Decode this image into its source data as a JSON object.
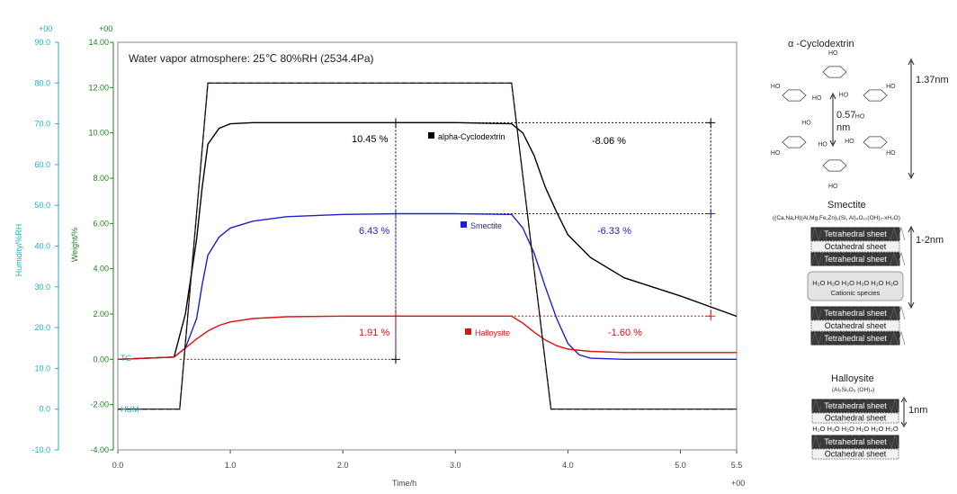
{
  "chart_data": {
    "type": "line",
    "title": "Water vapor atmosphere: 25℃  80%RH (2534.4Pa)",
    "xlabel": "Time/h",
    "ylabel_left": "Weight/%",
    "ylabel_humidity": "Humidity/%RH",
    "x_exponent": "+00",
    "weight_exponent": "+00",
    "humidity_exponent": "+00",
    "xlim": [
      0.0,
      5.5
    ],
    "weight_ylim": [
      -4.0,
      14.0
    ],
    "humidity_ylim": [
      -10.0,
      90.0
    ],
    "x_ticks": [
      "0.0",
      "1.0",
      "2.0",
      "3.0",
      "4.0",
      "5.0",
      "5.5"
    ],
    "weight_ticks": [
      "-4.00",
      "-2.00",
      "0.00",
      "2.00",
      "4.00",
      "6.00",
      "8.00",
      "10.00",
      "12.00",
      "14.00"
    ],
    "humidity_ticks": [
      "-10.0",
      "0.0",
      "10.0",
      "20.0",
      "30.0",
      "40.0",
      "50.0",
      "60.0",
      "70.0",
      "80.0",
      "90.0"
    ],
    "curve_labels": {
      "tg": "TG",
      "hum": "HUM"
    },
    "series": [
      {
        "name": "alpha-Cyclodextrin",
        "color": "#000000",
        "gain": "10.45 %",
        "loss": "-8.06 %",
        "x": [
          0.0,
          0.5,
          0.6,
          0.7,
          0.75,
          0.8,
          0.9,
          1.0,
          1.2,
          1.5,
          2.0,
          2.5,
          3.0,
          3.5,
          3.6,
          3.7,
          3.8,
          3.9,
          4.0,
          4.2,
          4.5,
          5.0,
          5.5
        ],
        "y": [
          0.0,
          0.1,
          2.0,
          5.3,
          7.6,
          9.5,
          10.2,
          10.4,
          10.45,
          10.45,
          10.45,
          10.45,
          10.45,
          10.4,
          10.0,
          9.0,
          7.6,
          6.5,
          5.5,
          4.5,
          3.6,
          2.8,
          1.9
        ]
      },
      {
        "name": "Smectite",
        "color": "#1e1ed2",
        "gain": "6.43 %",
        "loss": "-6.33 %",
        "x": [
          0.0,
          0.5,
          0.6,
          0.7,
          0.75,
          0.8,
          0.9,
          1.0,
          1.2,
          1.5,
          2.0,
          2.5,
          3.0,
          3.5,
          3.6,
          3.7,
          3.8,
          3.9,
          4.0,
          4.1,
          4.2,
          4.5,
          5.0,
          5.5
        ],
        "y": [
          0.0,
          0.1,
          0.5,
          1.8,
          3.3,
          4.6,
          5.4,
          5.8,
          6.1,
          6.3,
          6.4,
          6.43,
          6.43,
          6.4,
          5.8,
          4.7,
          3.2,
          1.8,
          0.7,
          0.2,
          0.05,
          0.0,
          0.0,
          0.0
        ]
      },
      {
        "name": "Halloysite",
        "color": "#e01010",
        "gain": "1.91 %",
        "loss": "-1.60 %",
        "x": [
          0.0,
          0.5,
          0.6,
          0.7,
          0.8,
          0.9,
          1.0,
          1.2,
          1.5,
          2.0,
          2.5,
          3.0,
          3.5,
          3.6,
          3.7,
          3.8,
          3.9,
          4.0,
          4.2,
          4.5,
          5.0,
          5.5
        ],
        "y": [
          0.0,
          0.1,
          0.5,
          0.9,
          1.25,
          1.5,
          1.65,
          1.8,
          1.88,
          1.91,
          1.91,
          1.91,
          1.91,
          1.6,
          1.2,
          0.85,
          0.6,
          0.45,
          0.35,
          0.3,
          0.3,
          0.3
        ]
      },
      {
        "name": "HUM",
        "color": "#b03030",
        "axis": "humidity",
        "x": [
          0.0,
          0.55,
          0.8,
          3.5,
          3.85,
          5.5
        ],
        "y": [
          0.0,
          0.0,
          80.0,
          80.0,
          0.0,
          0.0
        ]
      }
    ],
    "annotation_lines": {
      "x_start_mark": 2.47,
      "x_end_mark": 5.27
    }
  },
  "structures": {
    "cyclodextrin": {
      "title": "α -Cyclodextrin",
      "outer_dim": "1.37nm",
      "inner_dim_1": "0.57",
      "inner_dim_2": "nm",
      "group_label": "HO"
    },
    "smectite": {
      "title": "Smectite",
      "formula": "((Ca,Na,H)(Al,Mg,Fe,Zn)₂(Si, Al)₄O₁₀(OH)₂-xH₂O)",
      "dim": "1-2nm",
      "tetra": "Tetrahedral sheet",
      "octa": "Octahedral sheet",
      "water_row": "H₂O  H₂O  H₂O  H₂O  H₂O  H₂O",
      "cation": "Cationic species"
    },
    "halloysite": {
      "title": "Halloysite",
      "formula": "(Al₂Si₂O₅ (OH)₄)",
      "dim": "1nm",
      "tetra": "Tetrahedral sheet",
      "octa": "Octahedral sheet",
      "water_row": "H₂O H₂O H₂O H₂O H₂O H₂O"
    }
  }
}
